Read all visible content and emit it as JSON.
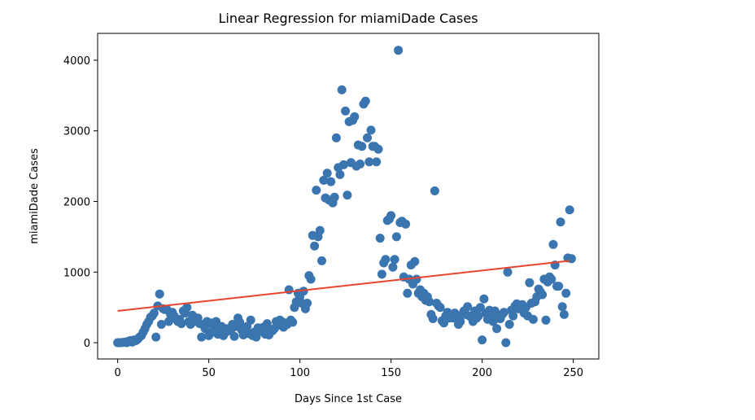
{
  "chart_data": {
    "type": "scatter",
    "title": "Linear Regression for miamiDade Cases",
    "xlabel": "Days Since 1st Case",
    "ylabel": "miamiDade Cases",
    "xlim": [
      -11,
      264
    ],
    "ylim": [
      -230,
      4380
    ],
    "x_ticks": [
      0,
      50,
      100,
      150,
      200,
      250
    ],
    "y_ticks": [
      0,
      1000,
      2000,
      3000,
      4000
    ],
    "grid": false,
    "legend": "none",
    "colors": {
      "points": "#3a75b0",
      "regression": "#e8452c"
    },
    "regression_line": {
      "x": [
        0,
        248
      ],
      "y": [
        450,
        1160
      ]
    },
    "points": [
      [
        0,
        0
      ],
      [
        1,
        0
      ],
      [
        2,
        0
      ],
      [
        3,
        5
      ],
      [
        4,
        10
      ],
      [
        5,
        0
      ],
      [
        6,
        20
      ],
      [
        7,
        30
      ],
      [
        8,
        10
      ],
      [
        9,
        40
      ],
      [
        10,
        30
      ],
      [
        11,
        50
      ],
      [
        12,
        80
      ],
      [
        13,
        100
      ],
      [
        14,
        150
      ],
      [
        15,
        200
      ],
      [
        16,
        260
      ],
      [
        17,
        300
      ],
      [
        18,
        360
      ],
      [
        19,
        380
      ],
      [
        20,
        420
      ],
      [
        21,
        80
      ],
      [
        22,
        520
      ],
      [
        23,
        690
      ],
      [
        24,
        260
      ],
      [
        25,
        480
      ],
      [
        26,
        470
      ],
      [
        27,
        470
      ],
      [
        28,
        300
      ],
      [
        29,
        400
      ],
      [
        30,
        430
      ],
      [
        31,
        380
      ],
      [
        32,
        340
      ],
      [
        33,
        300
      ],
      [
        34,
        330
      ],
      [
        35,
        270
      ],
      [
        36,
        450
      ],
      [
        37,
        420
      ],
      [
        38,
        500
      ],
      [
        39,
        300
      ],
      [
        40,
        260
      ],
      [
        41,
        390
      ],
      [
        42,
        300
      ],
      [
        43,
        310
      ],
      [
        44,
        350
      ],
      [
        45,
        270
      ],
      [
        46,
        80
      ],
      [
        47,
        250
      ],
      [
        48,
        200
      ],
      [
        49,
        300
      ],
      [
        50,
        100
      ],
      [
        51,
        280
      ],
      [
        52,
        150
      ],
      [
        53,
        220
      ],
      [
        54,
        300
      ],
      [
        55,
        120
      ],
      [
        56,
        180
      ],
      [
        57,
        230
      ],
      [
        58,
        100
      ],
      [
        59,
        140
      ],
      [
        60,
        200
      ],
      [
        61,
        200
      ],
      [
        62,
        170
      ],
      [
        63,
        260
      ],
      [
        64,
        90
      ],
      [
        65,
        230
      ],
      [
        66,
        350
      ],
      [
        67,
        290
      ],
      [
        68,
        180
      ],
      [
        69,
        110
      ],
      [
        70,
        190
      ],
      [
        71,
        230
      ],
      [
        72,
        130
      ],
      [
        73,
        320
      ],
      [
        74,
        100
      ],
      [
        75,
        150
      ],
      [
        76,
        80
      ],
      [
        77,
        210
      ],
      [
        78,
        200
      ],
      [
        79,
        160
      ],
      [
        80,
        220
      ],
      [
        81,
        120
      ],
      [
        82,
        270
      ],
      [
        83,
        110
      ],
      [
        84,
        190
      ],
      [
        85,
        170
      ],
      [
        86,
        200
      ],
      [
        87,
        300
      ],
      [
        88,
        250
      ],
      [
        89,
        320
      ],
      [
        90,
        300
      ],
      [
        91,
        220
      ],
      [
        92,
        280
      ],
      [
        93,
        260
      ],
      [
        94,
        750
      ],
      [
        95,
        320
      ],
      [
        96,
        290
      ],
      [
        97,
        500
      ],
      [
        98,
        580
      ],
      [
        99,
        700
      ],
      [
        100,
        650
      ],
      [
        101,
        560
      ],
      [
        102,
        730
      ],
      [
        103,
        480
      ],
      [
        104,
        560
      ],
      [
        105,
        950
      ],
      [
        106,
        900
      ],
      [
        107,
        1520
      ],
      [
        108,
        1370
      ],
      [
        109,
        2160
      ],
      [
        110,
        1500
      ],
      [
        111,
        1590
      ],
      [
        112,
        1160
      ],
      [
        113,
        2300
      ],
      [
        114,
        2050
      ],
      [
        115,
        2400
      ],
      [
        116,
        2020
      ],
      [
        117,
        2280
      ],
      [
        118,
        1980
      ],
      [
        119,
        2060
      ],
      [
        120,
        2900
      ],
      [
        121,
        2480
      ],
      [
        122,
        2380
      ],
      [
        123,
        3580
      ],
      [
        124,
        2520
      ],
      [
        125,
        3280
      ],
      [
        126,
        2090
      ],
      [
        127,
        3130
      ],
      [
        128,
        2550
      ],
      [
        129,
        3150
      ],
      [
        130,
        3200
      ],
      [
        131,
        2500
      ],
      [
        132,
        2800
      ],
      [
        133,
        2530
      ],
      [
        134,
        2780
      ],
      [
        135,
        3380
      ],
      [
        136,
        3420
      ],
      [
        137,
        2900
      ],
      [
        138,
        2560
      ],
      [
        139,
        3010
      ],
      [
        140,
        2780
      ],
      [
        141,
        2780
      ],
      [
        142,
        2560
      ],
      [
        143,
        2740
      ],
      [
        144,
        1480
      ],
      [
        145,
        970
      ],
      [
        146,
        1130
      ],
      [
        147,
        1180
      ],
      [
        148,
        1730
      ],
      [
        149,
        1750
      ],
      [
        150,
        1800
      ],
      [
        151,
        1070
      ],
      [
        152,
        1180
      ],
      [
        153,
        1500
      ],
      [
        154,
        4140
      ],
      [
        155,
        1700
      ],
      [
        156,
        1720
      ],
      [
        157,
        930
      ],
      [
        158,
        1680
      ],
      [
        159,
        700
      ],
      [
        160,
        900
      ],
      [
        161,
        1100
      ],
      [
        162,
        830
      ],
      [
        163,
        1150
      ],
      [
        164,
        900
      ],
      [
        165,
        700
      ],
      [
        166,
        750
      ],
      [
        167,
        650
      ],
      [
        168,
        700
      ],
      [
        169,
        600
      ],
      [
        170,
        650
      ],
      [
        171,
        580
      ],
      [
        172,
        400
      ],
      [
        173,
        340
      ],
      [
        174,
        2150
      ],
      [
        175,
        560
      ],
      [
        176,
        520
      ],
      [
        177,
        500
      ],
      [
        178,
        310
      ],
      [
        179,
        280
      ],
      [
        180,
        380
      ],
      [
        181,
        430
      ],
      [
        182,
        350
      ],
      [
        183,
        400
      ],
      [
        184,
        350
      ],
      [
        185,
        420
      ],
      [
        186,
        360
      ],
      [
        187,
        260
      ],
      [
        188,
        300
      ],
      [
        189,
        400
      ],
      [
        190,
        450
      ],
      [
        191,
        400
      ],
      [
        192,
        510
      ],
      [
        193,
        380
      ],
      [
        194,
        360
      ],
      [
        195,
        300
      ],
      [
        196,
        450
      ],
      [
        197,
        350
      ],
      [
        198,
        380
      ],
      [
        199,
        500
      ],
      [
        200,
        40
      ],
      [
        201,
        620
      ],
      [
        202,
        420
      ],
      [
        203,
        330
      ],
      [
        204,
        460
      ],
      [
        205,
        380
      ],
      [
        206,
        300
      ],
      [
        207,
        450
      ],
      [
        208,
        200
      ],
      [
        209,
        380
      ],
      [
        210,
        340
      ],
      [
        211,
        400
      ],
      [
        212,
        430
      ],
      [
        213,
        0
      ],
      [
        214,
        1000
      ],
      [
        215,
        260
      ],
      [
        216,
        460
      ],
      [
        217,
        380
      ],
      [
        218,
        520
      ],
      [
        219,
        550
      ],
      [
        220,
        480
      ],
      [
        221,
        500
      ],
      [
        222,
        540
      ],
      [
        223,
        420
      ],
      [
        224,
        500
      ],
      [
        225,
        380
      ],
      [
        226,
        850
      ],
      [
        227,
        560
      ],
      [
        228,
        330
      ],
      [
        229,
        580
      ],
      [
        230,
        650
      ],
      [
        231,
        760
      ],
      [
        232,
        720
      ],
      [
        233,
        680
      ],
      [
        234,
        900
      ],
      [
        235,
        320
      ],
      [
        236,
        860
      ],
      [
        237,
        930
      ],
      [
        238,
        900
      ],
      [
        239,
        1390
      ],
      [
        240,
        1100
      ],
      [
        241,
        800
      ],
      [
        242,
        800
      ],
      [
        243,
        1710
      ],
      [
        244,
        510
      ],
      [
        245,
        400
      ],
      [
        246,
        700
      ],
      [
        247,
        1200
      ],
      [
        248,
        1880
      ],
      [
        249,
        1190
      ]
    ]
  }
}
